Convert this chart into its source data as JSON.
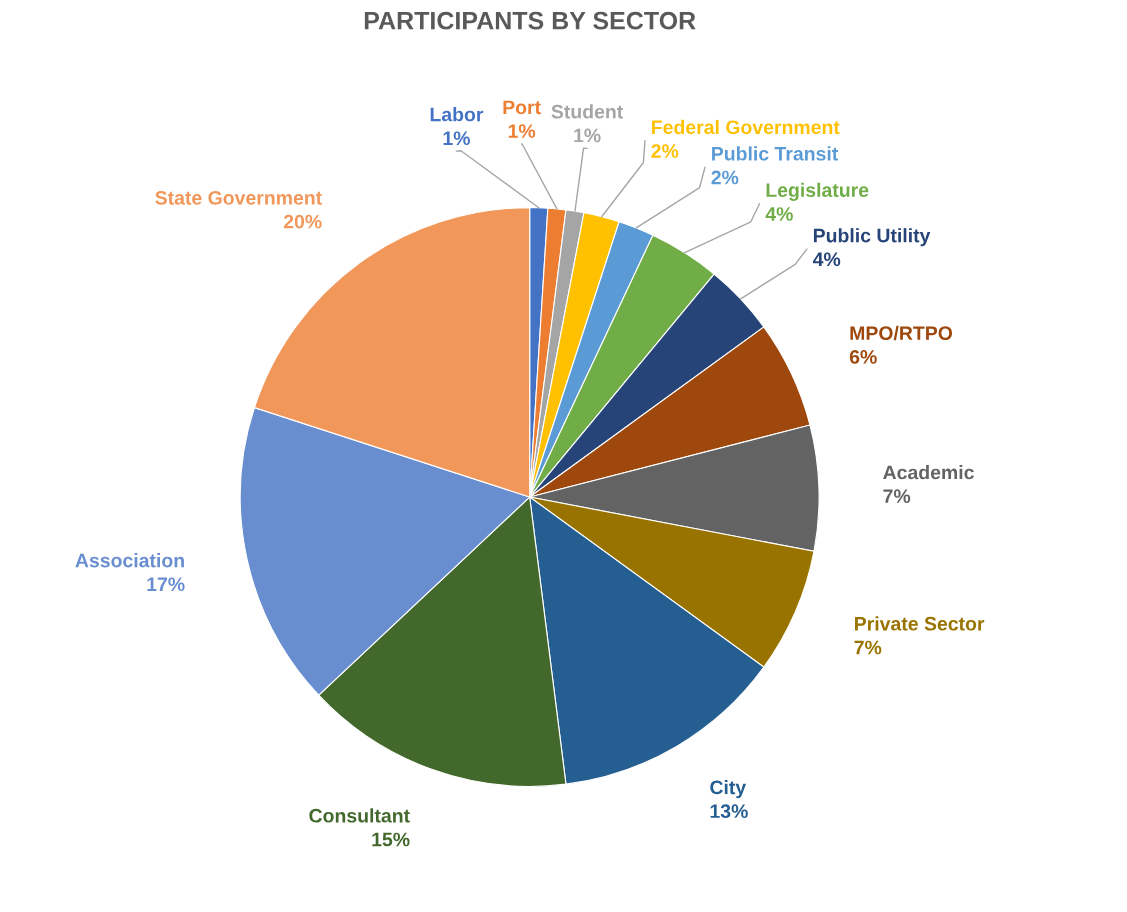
{
  "chart_data": {
    "type": "pie",
    "title": "PARTICIPANTS BY SECTOR",
    "categories": [
      "Labor",
      "Port",
      "Student",
      "Federal Government",
      "Public Transit",
      "Legislature",
      "Public Utility",
      "MPO/RTPO",
      "Academic",
      "Private Sector",
      "City",
      "Consultant",
      "Association",
      "State Government"
    ],
    "values": [
      1,
      1,
      1,
      2,
      2,
      4,
      4,
      6,
      7,
      7,
      13,
      15,
      17,
      20
    ],
    "colors": [
      "#4472c4",
      "#ed7d31",
      "#a5a5a5",
      "#ffc000",
      "#5b9bd5",
      "#70ad47",
      "#264478",
      "#9e480e",
      "#636363",
      "#997300",
      "#255e91",
      "#43682b",
      "#698ed0",
      "#f1975a"
    ],
    "value_labels": [
      "1%",
      "1%",
      "1%",
      "2%",
      "2%",
      "4%",
      "4%",
      "6%",
      "7%",
      "7%",
      "13%",
      "15%",
      "17%",
      "20%"
    ]
  }
}
